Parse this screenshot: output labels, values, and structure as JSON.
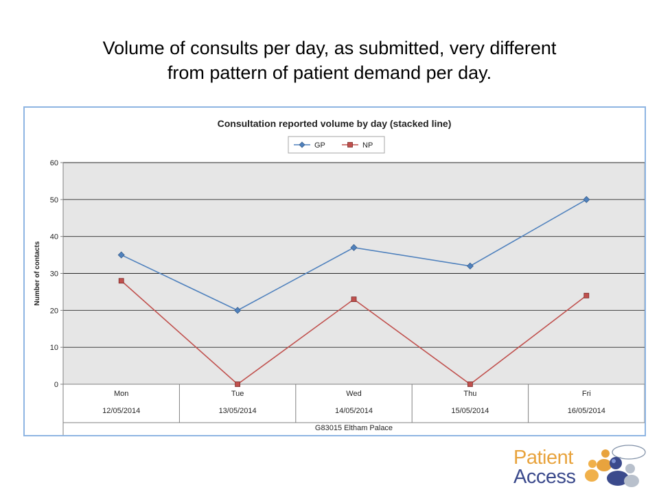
{
  "slide": {
    "title_line1": "Volume of consults per day, as submitted, very different",
    "title_line2": "from pattern of patient demand per day."
  },
  "chart_data": {
    "type": "line",
    "title": "Consultation reported volume by day (stacked line)",
    "ylabel": "Number of contacts",
    "ylim": [
      0,
      60
    ],
    "yticks": [
      0,
      10,
      20,
      30,
      40,
      50,
      60
    ],
    "grid": true,
    "legend_position": "top-center",
    "categories": [
      "Mon",
      "Tue",
      "Wed",
      "Thu",
      "Fri"
    ],
    "dates": [
      "12/05/2014",
      "13/05/2014",
      "14/05/2014",
      "15/05/2014",
      "16/05/2014"
    ],
    "group_label": "G83015 Eltham Palace",
    "series": [
      {
        "name": "GP",
        "values": [
          35,
          20,
          37,
          32,
          50
        ],
        "color": "#4f81bd",
        "marker": "diamond"
      },
      {
        "name": "NP",
        "values": [
          28,
          0,
          23,
          0,
          24
        ],
        "color": "#c0504d",
        "marker": "square"
      }
    ]
  },
  "logo": {
    "line1": "Patient",
    "line2": "Access",
    "color_text": "#e8a33d",
    "color_text2": "#3b4a8c"
  }
}
